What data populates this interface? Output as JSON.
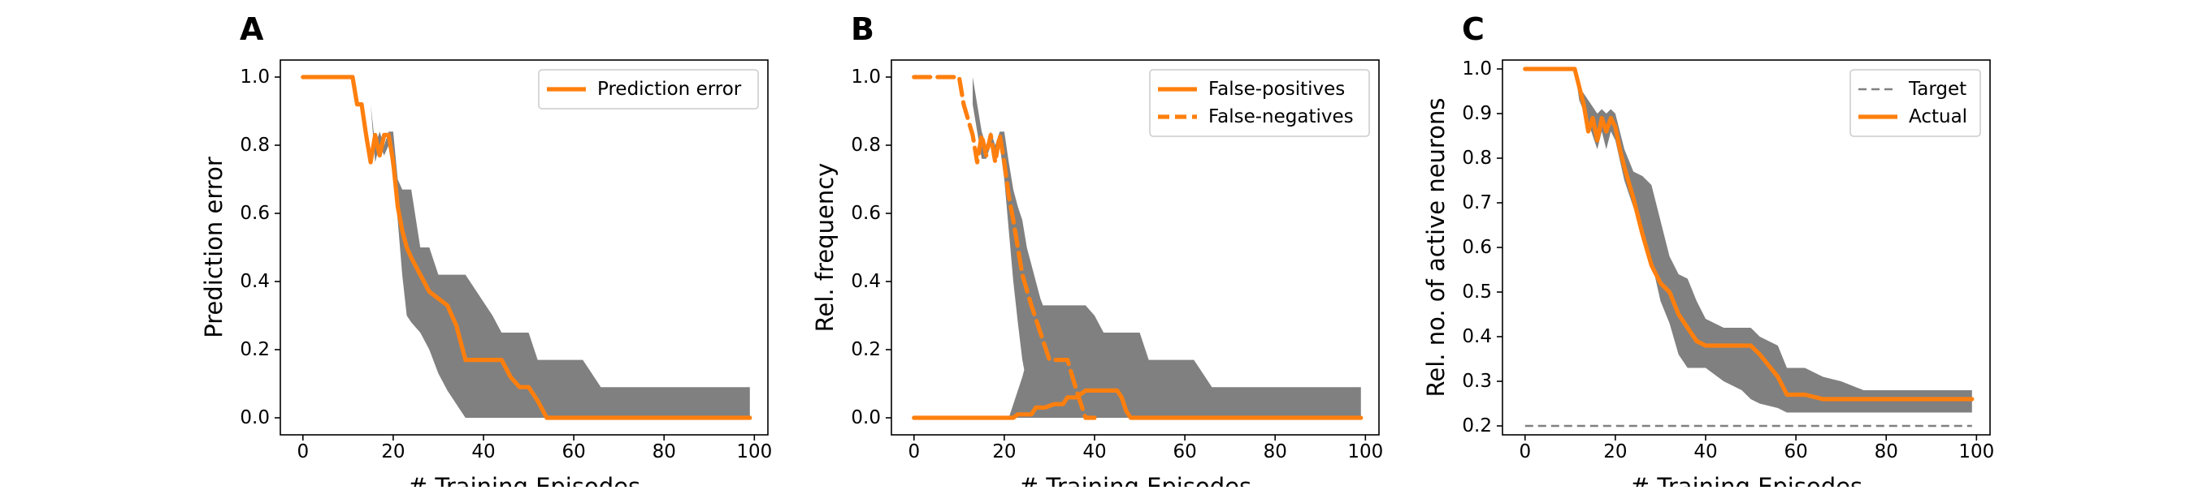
{
  "chart_data": [
    {
      "type": "line",
      "panel_label": "A",
      "xlabel": "# Training Episodes",
      "ylabel": "Prediction error",
      "xlim": [
        -5,
        103
      ],
      "ylim": [
        -0.05,
        1.05
      ],
      "xticks": [
        0,
        20,
        40,
        60,
        80,
        100
      ],
      "yticks": [
        0.0,
        0.2,
        0.4,
        0.6,
        0.8,
        1.0
      ],
      "xtick_labels": [
        "0",
        "20",
        "40",
        "60",
        "80",
        "100"
      ],
      "ytick_labels": [
        "0.0",
        "0.2",
        "0.4",
        "0.6",
        "0.8",
        "1.0"
      ],
      "legend_position": "upper right",
      "band": {
        "color": "#808080",
        "x": [
          0,
          12,
          13,
          15,
          16,
          17,
          18,
          19,
          20,
          21,
          22,
          23,
          24,
          26,
          28,
          30,
          32,
          34,
          36,
          38,
          40,
          42,
          44,
          46,
          48,
          50,
          52,
          54,
          56,
          60,
          62,
          64,
          66,
          70,
          80,
          90,
          99
        ],
        "upper": [
          1.0,
          1.0,
          0.92,
          0.92,
          0.8,
          0.84,
          0.8,
          0.84,
          0.84,
          0.7,
          0.67,
          0.67,
          0.67,
          0.5,
          0.5,
          0.42,
          0.42,
          0.42,
          0.42,
          0.38,
          0.34,
          0.3,
          0.25,
          0.25,
          0.25,
          0.25,
          0.17,
          0.17,
          0.17,
          0.17,
          0.17,
          0.13,
          0.09,
          0.09,
          0.09,
          0.09,
          0.09
        ],
        "lower": [
          1.0,
          1.0,
          0.92,
          0.92,
          0.75,
          0.8,
          0.77,
          0.8,
          0.7,
          0.58,
          0.42,
          0.3,
          0.28,
          0.25,
          0.2,
          0.13,
          0.08,
          0.04,
          0.0,
          0.0,
          0.0,
          0.0,
          0.0,
          0.0,
          0.0,
          0.0,
          0.0,
          0.0,
          0.0,
          0.0,
          0.0,
          0.0,
          0.0,
          0.0,
          0.0,
          0.0,
          0.0
        ]
      },
      "series": [
        {
          "name": "Prediction error",
          "color": "#ff7f0e",
          "style": "solid",
          "x": [
            0,
            11,
            12,
            13,
            14,
            15,
            16,
            17,
            18,
            19,
            20,
            21,
            22,
            23,
            24,
            26,
            28,
            30,
            32,
            34,
            36,
            38,
            40,
            42,
            44,
            46,
            48,
            50,
            52,
            54,
            60,
            70,
            80,
            90,
            99
          ],
          "y": [
            1.0,
            1.0,
            0.92,
            0.92,
            0.83,
            0.75,
            0.83,
            0.77,
            0.83,
            0.83,
            0.75,
            0.62,
            0.55,
            0.5,
            0.47,
            0.42,
            0.37,
            0.35,
            0.33,
            0.27,
            0.17,
            0.17,
            0.17,
            0.17,
            0.17,
            0.12,
            0.09,
            0.09,
            0.05,
            0.0,
            0.0,
            0.0,
            0.0,
            0.0,
            0.0
          ]
        }
      ]
    },
    {
      "type": "line",
      "panel_label": "B",
      "xlabel": "# Training Episodes",
      "ylabel": "Rel. frequency",
      "xlim": [
        -5,
        103
      ],
      "ylim": [
        -0.05,
        1.05
      ],
      "xticks": [
        0,
        20,
        40,
        60,
        80,
        100
      ],
      "yticks": [
        0.0,
        0.2,
        0.4,
        0.6,
        0.8,
        1.0
      ],
      "xtick_labels": [
        "0",
        "20",
        "40",
        "60",
        "80",
        "100"
      ],
      "ytick_labels": [
        "0.0",
        "0.2",
        "0.4",
        "0.6",
        "0.8",
        "1.0"
      ],
      "legend_position": "upper right",
      "bands": [
        {
          "color": "#808080",
          "x": [
            13,
            14,
            15,
            16,
            17,
            18,
            19,
            20,
            21,
            22,
            23,
            24,
            25,
            26,
            28,
            30,
            32,
            34,
            36,
            38,
            40
          ],
          "upper": [
            1.0,
            0.92,
            0.84,
            0.8,
            0.84,
            0.8,
            0.84,
            0.84,
            0.75,
            0.67,
            0.62,
            0.58,
            0.5,
            0.45,
            0.35,
            0.28,
            0.2,
            0.17,
            0.1,
            0.05,
            0.0
          ],
          "lower": [
            0.92,
            0.84,
            0.76,
            0.76,
            0.8,
            0.77,
            0.8,
            0.7,
            0.55,
            0.4,
            0.28,
            0.17,
            0.1,
            0.05,
            0.0,
            0.0,
            0.0,
            0.0,
            0.0,
            0.0,
            0.0
          ]
        },
        {
          "color": "#808080",
          "x": [
            21,
            22,
            24,
            26,
            28,
            30,
            32,
            34,
            36,
            38,
            40,
            42,
            44,
            46,
            48,
            50,
            52,
            54,
            56,
            60,
            62,
            64,
            66,
            70,
            80,
            90,
            99
          ],
          "upper": [
            0.0,
            0.04,
            0.12,
            0.22,
            0.33,
            0.33,
            0.33,
            0.33,
            0.33,
            0.33,
            0.3,
            0.25,
            0.25,
            0.25,
            0.25,
            0.25,
            0.17,
            0.17,
            0.17,
            0.17,
            0.17,
            0.13,
            0.09,
            0.09,
            0.09,
            0.09,
            0.09
          ],
          "lower": [
            0.0,
            0.0,
            0.0,
            0.0,
            0.0,
            0.0,
            0.0,
            0.0,
            0.0,
            0.0,
            0.0,
            0.0,
            0.0,
            0.0,
            0.0,
            0.0,
            0.0,
            0.0,
            0.0,
            0.0,
            0.0,
            0.0,
            0.0,
            0.0,
            0.0,
            0.0,
            0.0
          ]
        }
      ],
      "series": [
        {
          "name": "False-positives",
          "color": "#ff7f0e",
          "style": "solid",
          "x": [
            0,
            22,
            23,
            26,
            27,
            29,
            31,
            33,
            34,
            36,
            38,
            41,
            45,
            46,
            47,
            48,
            60,
            80,
            99
          ],
          "y": [
            0.0,
            0.0,
            0.01,
            0.01,
            0.03,
            0.03,
            0.04,
            0.04,
            0.06,
            0.06,
            0.08,
            0.08,
            0.08,
            0.06,
            0.02,
            0.0,
            0.0,
            0.0,
            0.0
          ]
        },
        {
          "name": "False-negatives",
          "color": "#ff7f0e",
          "style": "dashed",
          "x": [
            0,
            10,
            11,
            13,
            14,
            15,
            16,
            17,
            18,
            19,
            20,
            21,
            22,
            23,
            24,
            26,
            28,
            30,
            32,
            34,
            36,
            37,
            38,
            40
          ],
          "y": [
            1.0,
            1.0,
            0.92,
            0.83,
            0.75,
            0.83,
            0.77,
            0.83,
            0.75,
            0.83,
            0.75,
            0.65,
            0.58,
            0.5,
            0.42,
            0.33,
            0.25,
            0.17,
            0.17,
            0.17,
            0.08,
            0.04,
            0.0,
            0.0
          ]
        }
      ]
    },
    {
      "type": "line",
      "panel_label": "C",
      "xlabel": "# Training Episodes",
      "ylabel": "Rel. no. of active neurons",
      "xlim": [
        -5,
        103
      ],
      "ylim": [
        0.18,
        1.02
      ],
      "xticks": [
        0,
        20,
        40,
        60,
        80,
        100
      ],
      "yticks": [
        0.2,
        0.3,
        0.4,
        0.5,
        0.6,
        0.7,
        0.8,
        0.9,
        1.0
      ],
      "xtick_labels": [
        "0",
        "20",
        "40",
        "60",
        "80",
        "100"
      ],
      "ytick_labels": [
        "0.2",
        "0.3",
        "0.4",
        "0.5",
        "0.6",
        "0.7",
        "0.8",
        "0.9",
        "1.0"
      ],
      "legend_position": "upper right",
      "band": {
        "color": "#808080",
        "x": [
          0,
          11,
          12,
          14,
          16,
          17,
          18,
          19,
          20,
          22,
          24,
          26,
          28,
          30,
          32,
          34,
          36,
          38,
          40,
          44,
          48,
          50,
          52,
          56,
          58,
          62,
          66,
          70,
          75,
          80,
          90,
          99
        ],
        "upper": [
          1.0,
          1.0,
          0.96,
          0.93,
          0.9,
          0.91,
          0.9,
          0.91,
          0.9,
          0.82,
          0.77,
          0.76,
          0.74,
          0.66,
          0.58,
          0.54,
          0.53,
          0.48,
          0.44,
          0.42,
          0.42,
          0.42,
          0.4,
          0.38,
          0.33,
          0.33,
          0.31,
          0.3,
          0.28,
          0.28,
          0.28,
          0.28
        ],
        "lower": [
          1.0,
          1.0,
          0.93,
          0.88,
          0.82,
          0.86,
          0.82,
          0.86,
          0.84,
          0.75,
          0.69,
          0.64,
          0.57,
          0.48,
          0.43,
          0.36,
          0.33,
          0.33,
          0.33,
          0.3,
          0.28,
          0.26,
          0.25,
          0.24,
          0.23,
          0.23,
          0.23,
          0.23,
          0.23,
          0.23,
          0.23,
          0.23
        ]
      },
      "series": [
        {
          "name": "Target",
          "color": "#808080",
          "style": "dashed",
          "x": [
            0,
            99
          ],
          "y": [
            0.2,
            0.2
          ]
        },
        {
          "name": "Actual",
          "color": "#ff7f0e",
          "style": "solid",
          "x": [
            0,
            11,
            12,
            13,
            14,
            15,
            16,
            17,
            18,
            19,
            20,
            21,
            22,
            24,
            26,
            28,
            30,
            32,
            34,
            36,
            38,
            40,
            44,
            50,
            52,
            56,
            58,
            62,
            66,
            70,
            75,
            80,
            90,
            99
          ],
          "y": [
            1.0,
            1.0,
            0.96,
            0.92,
            0.86,
            0.89,
            0.84,
            0.89,
            0.86,
            0.89,
            0.87,
            0.82,
            0.78,
            0.71,
            0.63,
            0.56,
            0.52,
            0.5,
            0.45,
            0.42,
            0.39,
            0.38,
            0.38,
            0.38,
            0.36,
            0.31,
            0.27,
            0.27,
            0.26,
            0.26,
            0.26,
            0.26,
            0.26,
            0.26
          ]
        }
      ]
    }
  ]
}
